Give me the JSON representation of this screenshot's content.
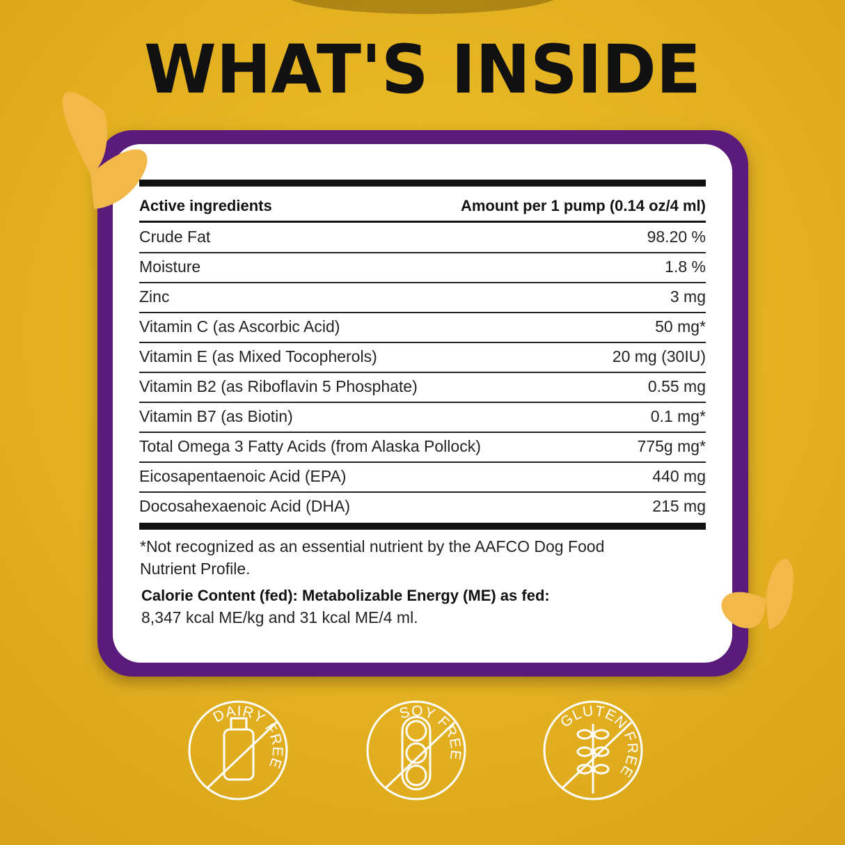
{
  "title": "WHAT'S INSIDE",
  "table": {
    "header": [
      "Active ingredients",
      "Amount per 1 pump (0.14 oz/4 ml)"
    ],
    "rows": [
      [
        "Crude Fat",
        "98.20 %"
      ],
      [
        "Moisture",
        "1.8 %"
      ],
      [
        "Zinc",
        "3 mg"
      ],
      [
        "Vitamin C (as Ascorbic Acid)",
        "50 mg*"
      ],
      [
        "Vitamin E (as Mixed Tocopherols)",
        "20 mg (30IU)"
      ],
      [
        "Vitamin B2 (as Riboflavin 5 Phosphate)",
        "0.55 mg"
      ],
      [
        "Vitamin B7 (as Biotin)",
        "0.1 mg*"
      ],
      [
        "Total Omega 3 Fatty Acids (from Alaska Pollock)",
        "775g mg*"
      ],
      [
        "Eicosapentaenoic Acid (EPA)",
        "440 mg"
      ],
      [
        "Docosahexaenoic Acid (DHA)",
        "215 mg"
      ]
    ]
  },
  "footnote": [
    "*Not recognized as an essential nutrient by the AAFCO Dog Food",
    "Nutrient Profile."
  ],
  "calorie": {
    "heading": "Calorie Content (fed): Metabolizable Energy (ME) as fed:",
    "text": "8,347 kcal ME/kg and 31 kcal ME/4 ml."
  },
  "badges": [
    "DAIRY FREE",
    "SOY FREE",
    "GLUTEN FREE"
  ]
}
